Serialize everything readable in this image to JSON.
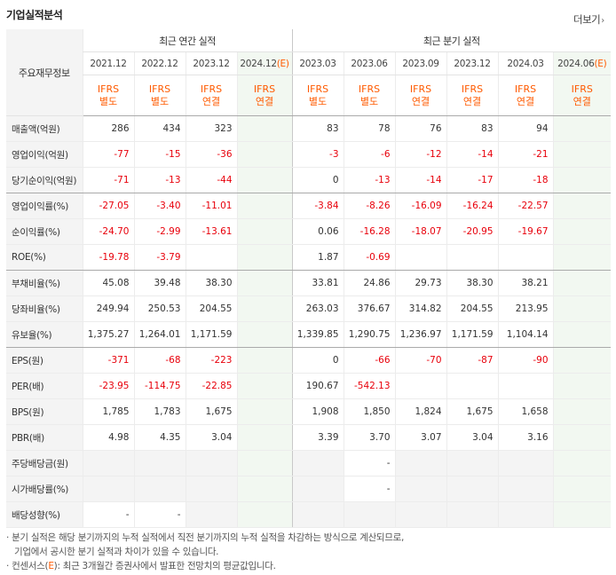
{
  "header": {
    "title": "기업실적분석",
    "more_label": "더보기"
  },
  "table": {
    "row_header": "주요재무정보",
    "groups": {
      "annual": "최근 연간 실적",
      "quarterly": "최근 분기 실적"
    },
    "annual_periods": [
      "2021.12",
      "2022.12",
      "2023.12",
      "2024.12"
    ],
    "quarter_periods": [
      "2023.03",
      "2023.06",
      "2023.09",
      "2023.12",
      "2024.03",
      "2024.06"
    ],
    "estimate_mark": "(E)",
    "annual_types": [
      {
        "a": "IFRS",
        "b": "별도"
      },
      {
        "a": "IFRS",
        "b": "별도"
      },
      {
        "a": "IFRS",
        "b": "연결"
      },
      {
        "a": "IFRS",
        "b": "연결"
      }
    ],
    "quarter_types": [
      {
        "a": "IFRS",
        "b": "별도"
      },
      {
        "a": "IFRS",
        "b": "별도"
      },
      {
        "a": "IFRS",
        "b": "연결"
      },
      {
        "a": "IFRS",
        "b": "연결"
      },
      {
        "a": "IFRS",
        "b": "연결"
      },
      {
        "a": "IFRS",
        "b": "연결"
      }
    ],
    "rows": [
      {
        "label": "매출액(억원)",
        "annual": [
          "286",
          "434",
          "323",
          ""
        ],
        "quarter": [
          "83",
          "78",
          "76",
          "83",
          "94",
          ""
        ]
      },
      {
        "label": "영업이익(억원)",
        "annual": [
          "-77",
          "-15",
          "-36",
          ""
        ],
        "quarter": [
          "-3",
          "-6",
          "-12",
          "-14",
          "-21",
          ""
        ]
      },
      {
        "label": "당기순이익(억원)",
        "annual": [
          "-71",
          "-13",
          "-44",
          ""
        ],
        "quarter": [
          "0",
          "-13",
          "-14",
          "-17",
          "-18",
          ""
        ]
      },
      {
        "label": "영업이익률(%)",
        "annual": [
          "-27.05",
          "-3.40",
          "-11.01",
          ""
        ],
        "quarter": [
          "-3.84",
          "-8.26",
          "-16.09",
          "-16.24",
          "-22.57",
          ""
        ]
      },
      {
        "label": "순이익률(%)",
        "annual": [
          "-24.70",
          "-2.99",
          "-13.61",
          ""
        ],
        "quarter": [
          "0.06",
          "-16.28",
          "-18.07",
          "-20.95",
          "-19.67",
          ""
        ]
      },
      {
        "label": "ROE(%)",
        "annual": [
          "-19.78",
          "-3.79",
          "",
          ""
        ],
        "quarter": [
          "1.87",
          "-0.69",
          "",
          "",
          "",
          ""
        ]
      },
      {
        "label": "부채비율(%)",
        "annual": [
          "45.08",
          "39.48",
          "38.30",
          ""
        ],
        "quarter": [
          "33.81",
          "24.86",
          "29.73",
          "38.30",
          "38.21",
          ""
        ]
      },
      {
        "label": "당좌비율(%)",
        "annual": [
          "249.94",
          "250.53",
          "204.55",
          ""
        ],
        "quarter": [
          "263.03",
          "376.67",
          "314.82",
          "204.55",
          "213.95",
          ""
        ]
      },
      {
        "label": "유보율(%)",
        "annual": [
          "1,375.27",
          "1,264.01",
          "1,171.59",
          ""
        ],
        "quarter": [
          "1,339.85",
          "1,290.75",
          "1,236.97",
          "1,171.59",
          "1,104.14",
          ""
        ]
      },
      {
        "label": "EPS(원)",
        "annual": [
          "-371",
          "-68",
          "-223",
          ""
        ],
        "quarter": [
          "0",
          "-66",
          "-70",
          "-87",
          "-90",
          ""
        ]
      },
      {
        "label": "PER(배)",
        "annual": [
          "-23.95",
          "-114.75",
          "-22.85",
          ""
        ],
        "quarter": [
          "190.67",
          "-542.13",
          "",
          "",
          "",
          ""
        ]
      },
      {
        "label": "BPS(원)",
        "annual": [
          "1,785",
          "1,783",
          "1,675",
          ""
        ],
        "quarter": [
          "1,908",
          "1,850",
          "1,824",
          "1,675",
          "1,658",
          ""
        ]
      },
      {
        "label": "PBR(배)",
        "annual": [
          "4.98",
          "4.35",
          "3.04",
          ""
        ],
        "quarter": [
          "3.39",
          "3.70",
          "3.07",
          "3.04",
          "3.16",
          ""
        ]
      },
      {
        "label": "주당배당금(원)",
        "annual": [
          "",
          "",
          "",
          ""
        ],
        "quarter": [
          "",
          "-",
          "",
          "",
          "",
          ""
        ],
        "shaded": true
      },
      {
        "label": "시가배당률(%)",
        "annual": [
          "",
          "",
          "",
          ""
        ],
        "quarter": [
          "",
          "-",
          "",
          "",
          "",
          ""
        ],
        "shaded": true
      },
      {
        "label": "배당성향(%)",
        "annual": [
          "-",
          "-",
          "",
          ""
        ],
        "quarter": [
          "",
          "",
          "",
          "",
          "",
          ""
        ],
        "shaded": true
      }
    ],
    "separator_after": [
      2,
      5,
      8
    ]
  },
  "notes": {
    "line1": "· 분기 실적은 해당 분기까지의 누적 실적에서 직전 분기까지의 누적 실적을 차감하는 방식으로 계산되므로,",
    "line2": "기업에서 공시한 분기 실적과 차이가 있을 수 있습니다.",
    "line3_prefix": "· 컨센서스(",
    "line3_e": "E",
    "line3_suffix": "): 최근 3개월간 증권사에서 발표한 전망치의 평균값입니다."
  },
  "colors": {
    "accent": "#ff5a00",
    "negative": "#e8000b",
    "estimate_bg": "#f2f8f1",
    "label_bg": "#f4f4f4"
  }
}
